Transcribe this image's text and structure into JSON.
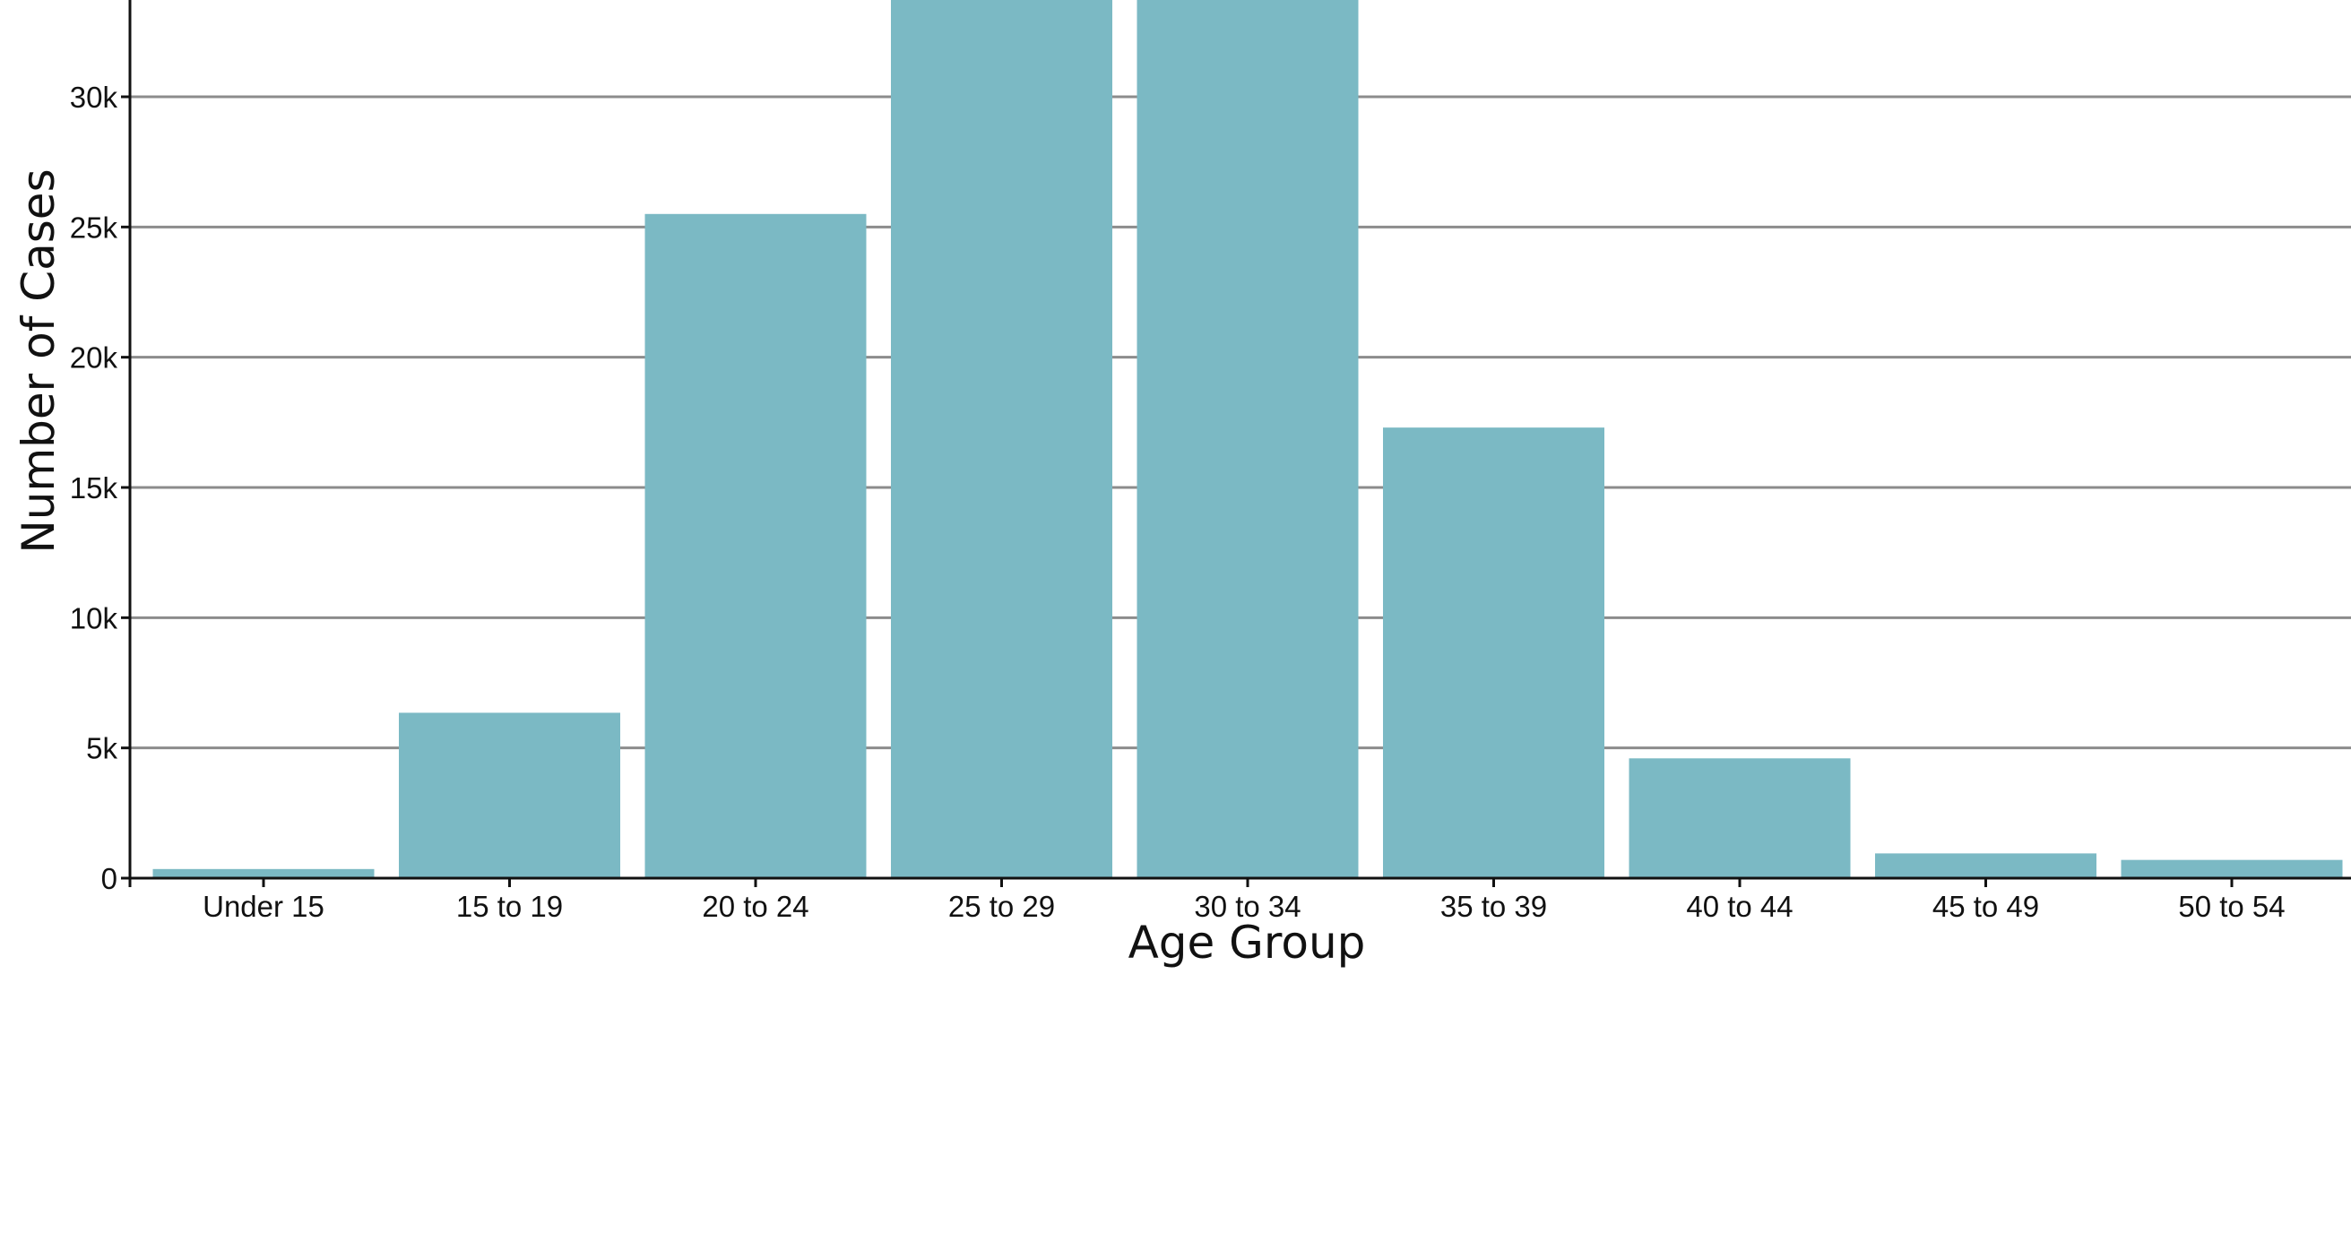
{
  "chart_data": {
    "type": "bar",
    "title": "",
    "xlabel": "Age Group",
    "ylabel": "Number of Cases",
    "categories": [
      "Under 15",
      "15 to 19",
      "20 to 24",
      "25 to 29",
      "30 to 34",
      "35 to 39",
      "40 to 44",
      "45 to 49",
      "50 to 54"
    ],
    "values": [
      350,
      6350,
      25500,
      34000,
      34000,
      17300,
      4600,
      950,
      700
    ],
    "y_ticks": [
      {
        "value": 0,
        "label": "0"
      },
      {
        "value": 5000,
        "label": "5k"
      },
      {
        "value": 10000,
        "label": "10k"
      },
      {
        "value": 15000,
        "label": "15k"
      },
      {
        "value": 20000,
        "label": "20k"
      },
      {
        "value": 25000,
        "label": "25k"
      },
      {
        "value": 30000,
        "label": "30k"
      }
    ],
    "ylim": [
      0,
      33700
    ],
    "grid": true,
    "bar_color": "#7bb9c4"
  }
}
